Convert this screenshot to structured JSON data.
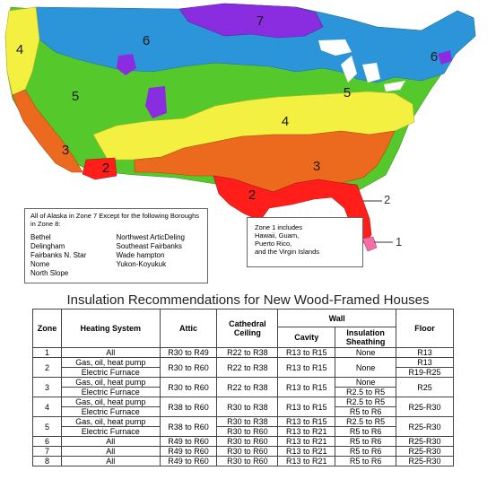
{
  "map": {
    "zone_colors": {
      "1": "#f46ea4",
      "2": "#ff1e1a",
      "3": "#ec6a1e",
      "4": "#f4f041",
      "5": "#55c92c",
      "6": "#2c94d8",
      "7": "#8a2de0"
    },
    "zone_labels": [
      "7",
      "6",
      "6",
      "5",
      "5",
      "4",
      "4",
      "3",
      "3",
      "2",
      "2"
    ],
    "callouts": [
      "2",
      "1"
    ],
    "alaska_note": {
      "intro": "All of Alaska in Zone 7 Except for the following Boroughs in Zone 8:",
      "col1": [
        "Bethel",
        "Delingham",
        "Fairbanks N. Star",
        "Nome",
        "North Slope"
      ],
      "col2": [
        "Northwest ArticDeling",
        "Southeast Fairbanks",
        "Wade hampton",
        "Yukon-Koyukuk"
      ]
    },
    "zone1_note": [
      "Zone 1 includes",
      "Hawaii, Guam,",
      "Puerto Rico,",
      "and the Virgin Islands"
    ]
  },
  "table": {
    "title": "Insulation Recommendations for New Wood-Framed Houses",
    "headers": {
      "zone": "Zone",
      "heating": "Heating System",
      "attic": "Attic",
      "cathedral": "Cathedral Ceiling",
      "wall": "Wall",
      "cavity": "Cavity",
      "sheathing": "Insulation Sheathing",
      "floor": "Floor"
    },
    "rows": {
      "z1": {
        "zone": "1",
        "heat": "All",
        "attic": "R30 to R49",
        "cath": "R22 to R38",
        "cavity": "R13 to R15",
        "sheath": "None",
        "floor": "R13"
      },
      "z2": {
        "zone": "2",
        "heat_a": "Gas, oil, heat pump",
        "heat_b": "Electric Furnace",
        "attic": "R30 to R60",
        "cath": "R22 to R38",
        "cavity": "R13 to R15",
        "sheath": "None",
        "floor_a": "R13",
        "floor_b": "R19-R25"
      },
      "z3": {
        "zone": "3",
        "heat_a": "Gas, oil, heat pump",
        "heat_b": "Electric Furnace",
        "attic": "R30 to R60",
        "cath": "R22 to R38",
        "cavity": "R13 to R15",
        "sheath_a": "None",
        "sheath_b": "R2.5 to R5",
        "floor": "R25"
      },
      "z4": {
        "zone": "4",
        "heat_a": "Gas, oil, heat pump",
        "heat_b": "Electric Furnace",
        "attic": "R38 to R60",
        "cath": "R30 to R38",
        "cavity": "R13 to R15",
        "sheath_a": "R2.5 to R5",
        "sheath_b": "R5 to R6",
        "floor": "R25-R30"
      },
      "z5": {
        "zone": "5",
        "heat_a": "Gas, oil, heat pump",
        "heat_b": "Electric Furnace",
        "attic": "R38 to R60",
        "cath_a": "R30 to R38",
        "cath_b": "R30 to R60",
        "cavity_a": "R13 to R15",
        "cavity_b": "R13 to R21",
        "sheath_a": "R2.5 to R5",
        "sheath_b": "R5 to R6",
        "floor": "R25-R30"
      },
      "z6": {
        "zone": "6",
        "heat": "All",
        "attic": "R49 to R60",
        "cath": "R30 to R60",
        "cavity": "R13 to R21",
        "sheath": "R5 to R6",
        "floor": "R25-R30"
      },
      "z7": {
        "zone": "7",
        "heat": "All",
        "attic": "R49 to R60",
        "cath": "R30 to R60",
        "cavity": "R13 to R21",
        "sheath": "R5 to R6",
        "floor": "R25-R30"
      },
      "z8": {
        "zone": "8",
        "heat": "All",
        "attic": "R49 to R60",
        "cath": "R30 to R60",
        "cavity": "R13 to R21",
        "sheath": "R5 to R6",
        "floor": "R25-R30"
      }
    }
  }
}
